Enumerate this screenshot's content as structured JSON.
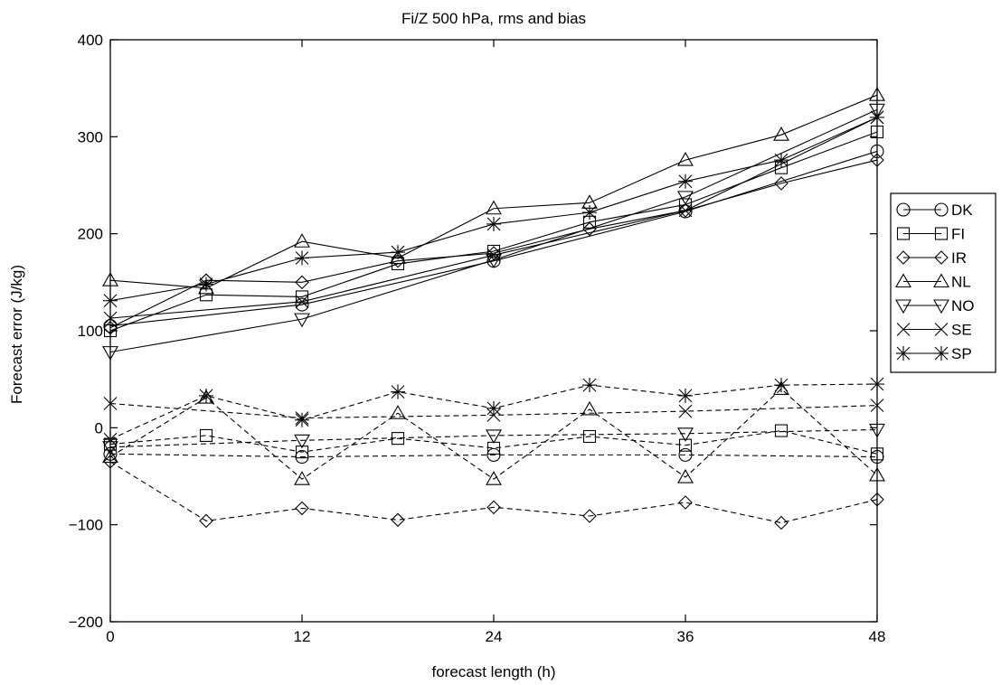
{
  "chart_data": {
    "type": "line",
    "title": "Fi/Z 500 hPa, rms and bias",
    "xlabel": "forecast length (h)",
    "ylabel": "Forecast error (J/kg)",
    "xlim": [
      0,
      48
    ],
    "ylim": [
      -200,
      400
    ],
    "xticks": [
      0,
      12,
      24,
      36,
      48
    ],
    "yticks": [
      -200,
      -100,
      0,
      100,
      200,
      300,
      400
    ],
    "grid": false,
    "legend_position": "right",
    "line_color": "#000000",
    "series": [
      {
        "name": "DK",
        "marker": "circle",
        "rms": {
          "x": [
            0,
            12,
            24,
            36,
            48
          ],
          "y": [
            105,
            127,
            172,
            223,
            285
          ]
        },
        "bias": {
          "x": [
            0,
            12,
            24,
            36,
            48
          ],
          "y": [
            -27,
            -30,
            -28,
            -28,
            -30
          ]
        }
      },
      {
        "name": "FI",
        "marker": "square",
        "rms": {
          "x": [
            0,
            6,
            12,
            18,
            24,
            30,
            36,
            42,
            48
          ],
          "y": [
            100,
            137,
            135,
            169,
            182,
            212,
            230,
            268,
            305
          ]
        },
        "bias": {
          "x": [
            0,
            6,
            12,
            18,
            24,
            30,
            36,
            42,
            48
          ],
          "y": [
            -17,
            -8,
            -25,
            -11,
            -21,
            -9,
            -18,
            -3,
            -27
          ]
        }
      },
      {
        "name": "IR",
        "marker": "diamond",
        "rms": {
          "x": [
            0,
            6,
            12,
            18,
            24,
            30,
            36,
            42,
            48
          ],
          "y": [
            103,
            152,
            150,
            172,
            180,
            205,
            224,
            252,
            276
          ]
        },
        "bias": {
          "x": [
            0,
            6,
            12,
            18,
            24,
            30,
            36,
            42,
            48
          ],
          "y": [
            -35,
            -96,
            -83,
            -95,
            -82,
            -91,
            -77,
            -98,
            -74
          ]
        }
      },
      {
        "name": "NL",
        "marker": "triangle-up",
        "rms": {
          "x": [
            0,
            6,
            12,
            18,
            24,
            30,
            36,
            42,
            48
          ],
          "y": [
            152,
            144,
            192,
            175,
            226,
            232,
            276,
            302,
            343
          ]
        },
        "bias": {
          "x": [
            0,
            6,
            12,
            18,
            24,
            30,
            36,
            42,
            48
          ],
          "y": [
            -30,
            31,
            -53,
            15,
            -53,
            19,
            -51,
            40,
            -49
          ]
        }
      },
      {
        "name": "NO",
        "marker": "triangle-down",
        "rms": {
          "x": [
            0,
            12,
            24,
            36,
            48
          ],
          "y": [
            78,
            112,
            173,
            238,
            328
          ]
        },
        "bias": {
          "x": [
            0,
            12,
            24,
            36,
            48
          ],
          "y": [
            -20,
            -13,
            -8,
            -6,
            -2
          ]
        }
      },
      {
        "name": "SE",
        "marker": "x",
        "rms": {
          "x": [
            0,
            12,
            24,
            36,
            48
          ],
          "y": [
            113,
            130,
            178,
            224,
            320
          ]
        },
        "bias": {
          "x": [
            0,
            12,
            24,
            36,
            48
          ],
          "y": [
            25,
            10,
            13,
            17,
            23
          ]
        }
      },
      {
        "name": "SP",
        "marker": "asterisk",
        "rms": {
          "x": [
            0,
            6,
            12,
            18,
            24,
            30,
            36,
            42,
            48
          ],
          "y": [
            131,
            148,
            175,
            181,
            210,
            222,
            254,
            276,
            320
          ]
        },
        "bias": {
          "x": [
            0,
            6,
            12,
            18,
            24,
            30,
            36,
            42,
            48
          ],
          "y": [
            -12,
            33,
            8,
            37,
            20,
            44,
            33,
            44,
            45
          ]
        }
      }
    ]
  }
}
